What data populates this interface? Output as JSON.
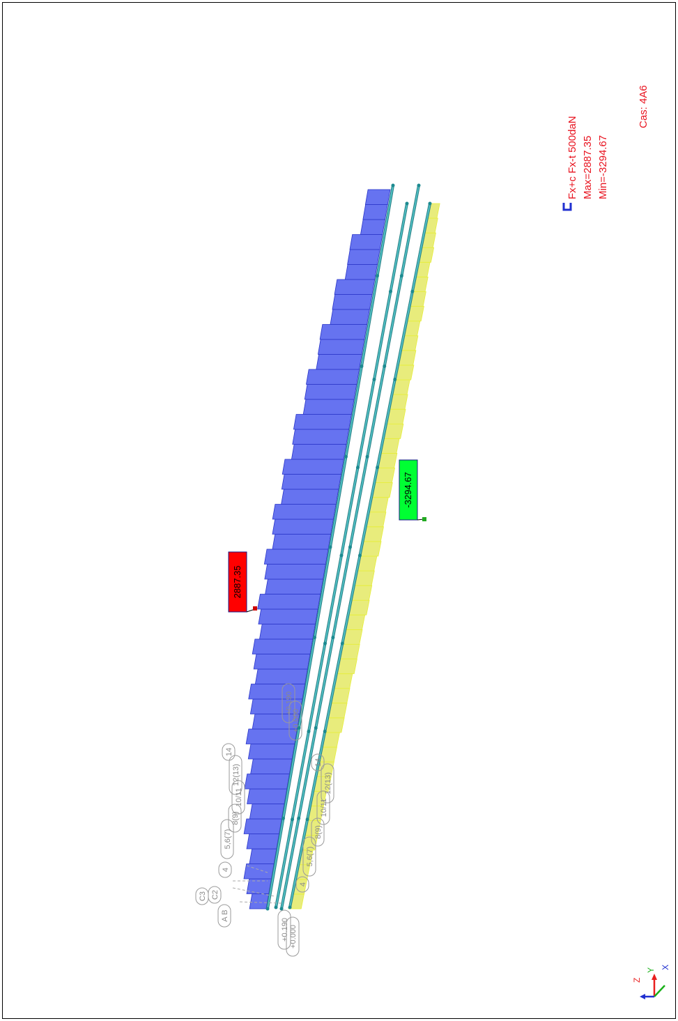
{
  "legend": {
    "line1": "Fx+c Fx-t  500daN",
    "line2": "Max=2887.35",
    "line3": "Min=-3294.67",
    "case": "Cas: 4A6"
  },
  "labels": {
    "max_value": "2887.35",
    "min_value": "-3294.67"
  },
  "model_tags": [
    "14",
    "12(13)",
    "10/11",
    "8(9)",
    "5,6(7)",
    "4",
    "C3",
    "C2",
    "A B",
    "+0.190",
    "+0.000",
    "14",
    "12(13)",
    "10/11",
    "8(9)",
    "5,6(7)",
    "4",
    "+0.190",
    "+0.000"
  ],
  "axes": {
    "z": "Z",
    "y": "Y",
    "x": "X"
  },
  "colors": {
    "positive_fill": "#6673f0",
    "negative_fill": "#e8ec7c",
    "max_box": "#ff0000",
    "min_box": "#00ff33",
    "beam": "#4fbfc4",
    "legend_text": "#e8121e"
  }
}
